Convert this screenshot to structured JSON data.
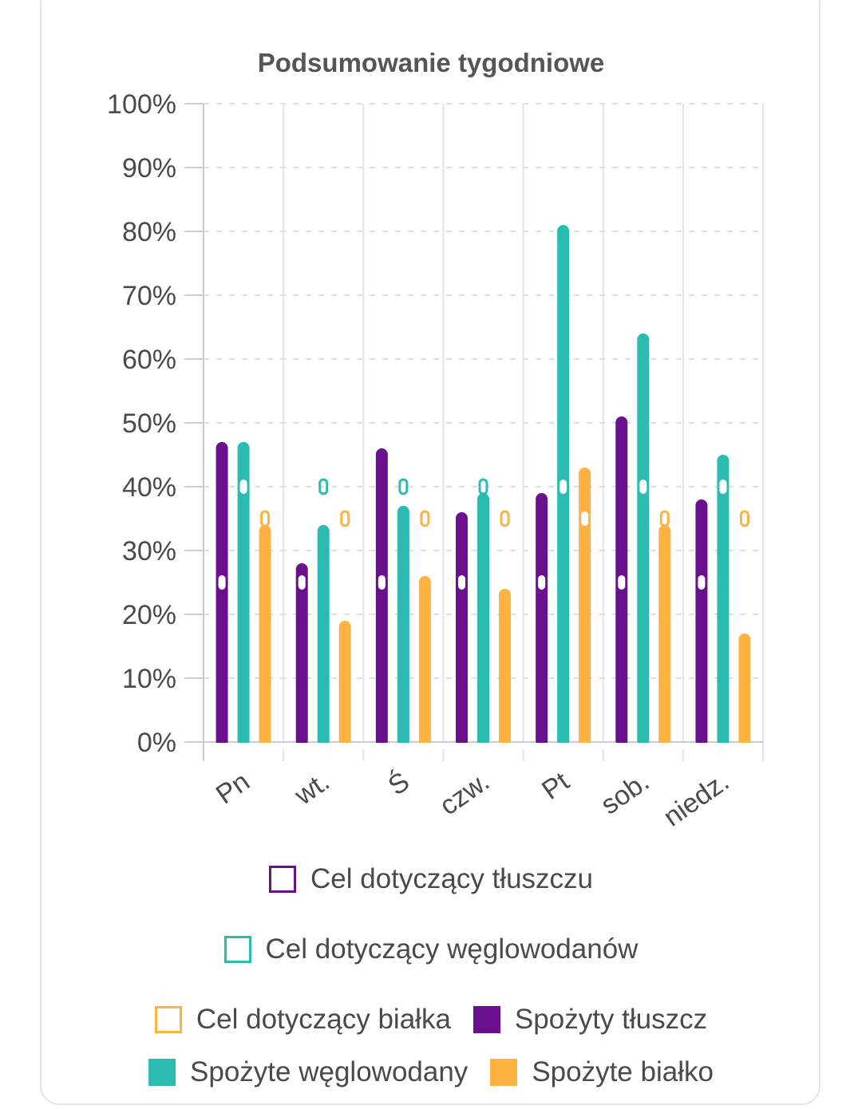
{
  "colors": {
    "fat": "#6a0f8e",
    "carbs": "#2bbbb0",
    "protein": "#ffb23f",
    "grid": "#dedede",
    "axis": "#cccccc",
    "text": "#4a4a4a"
  },
  "chart_data": {
    "type": "bar",
    "title": "Podsumowanie tygodniowe",
    "categories": [
      "Pn",
      "wt.",
      "Ś",
      "czw.",
      "Pt",
      "sob.",
      "niedz."
    ],
    "y_tick_labels": [
      "0%",
      "10%",
      "20%",
      "30%",
      "40%",
      "50%",
      "60%",
      "70%",
      "80%",
      "90%",
      "100%"
    ],
    "ylim": [
      0,
      100
    ],
    "grid": true,
    "legend_position": "bottom",
    "series": [
      {
        "name": "Spożyty tłuszcz",
        "key": "fat",
        "values": [
          47,
          28,
          46,
          36,
          39,
          51,
          38
        ]
      },
      {
        "name": "Spożyte węglowodany",
        "key": "carbs",
        "values": [
          47,
          34,
          37,
          39,
          81,
          64,
          45
        ]
      },
      {
        "name": "Spożyte białko",
        "key": "protein",
        "values": [
          34,
          19,
          26,
          24,
          43,
          34,
          17
        ]
      }
    ],
    "goals": [
      {
        "name": "Cel dotyczący tłuszczu",
        "key": "fat",
        "values": [
          25,
          25,
          25,
          25,
          25,
          25,
          25
        ]
      },
      {
        "name": "Cel dotyczący węglowodanów",
        "key": "carbs",
        "values": [
          40,
          40,
          40,
          40,
          40,
          40,
          40
        ]
      },
      {
        "name": "Cel dotyczący białka",
        "key": "protein",
        "values": [
          35,
          35,
          35,
          35,
          35,
          35,
          35
        ]
      }
    ],
    "legend": [
      {
        "label": "Cel dotyczący tłuszczu",
        "key": "fat",
        "style": "outline"
      },
      {
        "label": "Cel dotyczący węglowodanów",
        "key": "carbs",
        "style": "outline"
      },
      {
        "label": "Cel dotyczący białka",
        "key": "protein",
        "style": "outline"
      },
      {
        "label": "Spożyty tłuszcz",
        "key": "fat",
        "style": "filled"
      },
      {
        "label": "Spożyte węglowodany",
        "key": "carbs",
        "style": "filled"
      },
      {
        "label": "Spożyte białko",
        "key": "protein",
        "style": "filled"
      }
    ]
  }
}
